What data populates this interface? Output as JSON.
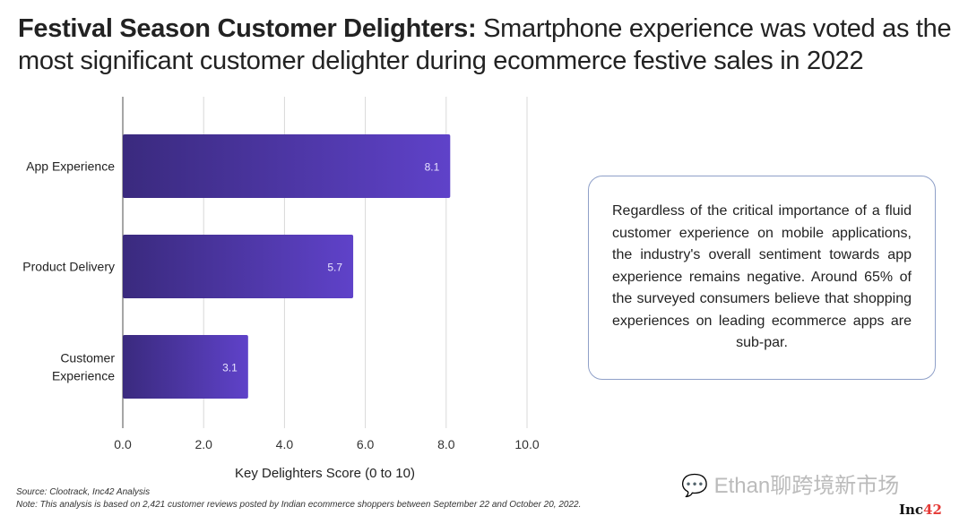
{
  "title": {
    "bold": "Festival Season Customer Delighters:",
    "rest": " Smartphone experience was voted as the most significant customer delighter during ecommerce festive sales in 2022"
  },
  "chart_data": {
    "type": "bar",
    "orientation": "horizontal",
    "categories": [
      [
        "App Experience"
      ],
      [
        "Product Delivery"
      ],
      [
        "Customer",
        "Experience"
      ]
    ],
    "values": [
      8.1,
      5.7,
      3.1
    ],
    "value_labels": [
      "8.1",
      "5.7",
      "3.1"
    ],
    "xlabel": "Key Delighters Score (0 to 10)",
    "xlim": [
      0,
      10
    ],
    "xticks": [
      "0.0",
      "2.0",
      "4.0",
      "6.0",
      "8.0",
      "10.0"
    ],
    "grid": true,
    "colors": {
      "bar_start": "#3a2a7e",
      "bar_end": "#5f42c9"
    }
  },
  "callout": "Regardless of the critical importance of a fluid customer experience on mobile applications, the industry's overall sentiment towards app experience remains negative. Around 65% of the surveyed consumers believe that shopping experiences on leading ecommerce apps are sub-par.",
  "source": "Source: Clootrack, Inc42 Analysis",
  "note": "Note: This analysis is based on 2,421 customer reviews posted by Indian ecommerce shoppers between September 22 and October 20, 2022.",
  "watermark": "Ethan聊跨境新市场",
  "logo": {
    "main": "Inc",
    "accent": "42"
  }
}
